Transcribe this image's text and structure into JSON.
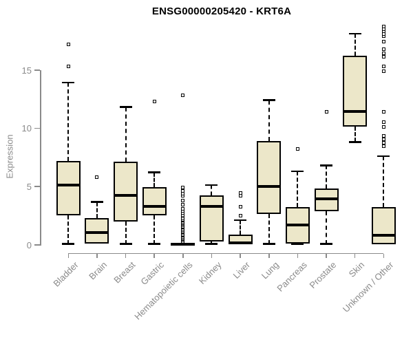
{
  "title": "ENSG00000205420 - KRT6A",
  "y_axis": {
    "label": "Expression",
    "tick_labels": [
      "0",
      "5",
      "10",
      "15"
    ]
  },
  "colors": {
    "box_fill": "#ece7c9",
    "box_stroke": "#000000",
    "axis": "#8a8a8a",
    "text_gray": "#8a8a8a",
    "title_color": "#000000"
  },
  "chart_data": {
    "type": "boxplot",
    "title": "ENSG00000205420 - KRT6A",
    "xlabel": "",
    "ylabel": "Expression",
    "ylim": [
      0,
      19
    ],
    "y_ticks": [
      0,
      5,
      10,
      15
    ],
    "grid": false,
    "legend": "none",
    "categories": [
      "Bladder",
      "Brain",
      "Breast",
      "Gastric",
      "Hematopoietic cells",
      "Kidney",
      "Liver",
      "Lung",
      "Pancreas",
      "Prostate",
      "Skin",
      "Unknown / Other"
    ],
    "series": [
      {
        "name": "Bladder",
        "whisker_low": 0.05,
        "q1": 2.5,
        "median": 5.1,
        "q3": 7.2,
        "whisker_high": 13.9,
        "outliers": [
          15.3,
          17.2
        ]
      },
      {
        "name": "Brain",
        "whisker_low": 0.1,
        "q1": 0.1,
        "median": 1.05,
        "q3": 2.25,
        "whisker_high": 3.65,
        "outliers": [
          5.8
        ]
      },
      {
        "name": "Breast",
        "whisker_low": 0.05,
        "q1": 2.0,
        "median": 4.2,
        "q3": 7.1,
        "whisker_high": 11.8,
        "outliers": []
      },
      {
        "name": "Gastric",
        "whisker_low": 0.05,
        "q1": 2.5,
        "median": 3.3,
        "q3": 4.95,
        "whisker_high": 6.2,
        "outliers": [
          12.3
        ]
      },
      {
        "name": "Hematopoietic cells",
        "whisker_low": 0.0,
        "q1": 0.0,
        "median": 0.05,
        "q3": 0.15,
        "whisker_high": 0.2,
        "outliers": [
          0.25,
          0.35,
          0.45,
          0.55,
          0.65,
          0.75,
          0.85,
          0.95,
          1.05,
          1.15,
          1.25,
          1.35,
          1.45,
          1.55,
          1.65,
          1.75,
          1.85,
          1.95,
          2.05,
          2.15,
          2.25,
          2.4,
          2.55,
          2.7,
          2.9,
          3.1,
          3.4,
          3.8,
          4.2,
          4.35,
          4.6,
          4.9,
          12.8
        ]
      },
      {
        "name": "Kidney",
        "whisker_low": 0.05,
        "q1": 0.25,
        "median": 3.3,
        "q3": 4.25,
        "whisker_high": 5.1,
        "outliers": []
      },
      {
        "name": "Liver",
        "whisker_low": 0.03,
        "q1": 0.03,
        "median": 0.15,
        "q3": 0.85,
        "whisker_high": 2.1,
        "outliers": [
          2.5,
          3.25,
          4.2,
          4.4
        ]
      },
      {
        "name": "Lung",
        "whisker_low": 0.05,
        "q1": 2.6,
        "median": 5.0,
        "q3": 8.9,
        "whisker_high": 12.4,
        "outliers": []
      },
      {
        "name": "Pancreas",
        "whisker_low": 0.03,
        "q1": 0.1,
        "median": 1.7,
        "q3": 3.2,
        "whisker_high": 6.3,
        "outliers": [
          8.2
        ]
      },
      {
        "name": "Prostate",
        "whisker_low": 0.05,
        "q1": 2.85,
        "median": 3.95,
        "q3": 4.8,
        "whisker_high": 6.8,
        "outliers": [
          11.4
        ]
      },
      {
        "name": "Skin",
        "whisker_low": 8.8,
        "q1": 10.1,
        "median": 11.4,
        "q3": 16.2,
        "whisker_high": 18.1,
        "outliers": []
      },
      {
        "name": "Unknown / Other",
        "whisker_low": 0.05,
        "q1": 0.05,
        "median": 0.8,
        "q3": 3.2,
        "whisker_high": 7.6,
        "outliers": [
          8.45,
          8.75,
          9.05,
          9.35,
          10.1,
          10.5,
          11.4,
          14.9,
          15.3,
          16.1,
          16.4,
          16.8,
          17.4,
          17.9,
          18.1,
          18.3,
          18.5,
          18.7
        ]
      }
    ]
  }
}
